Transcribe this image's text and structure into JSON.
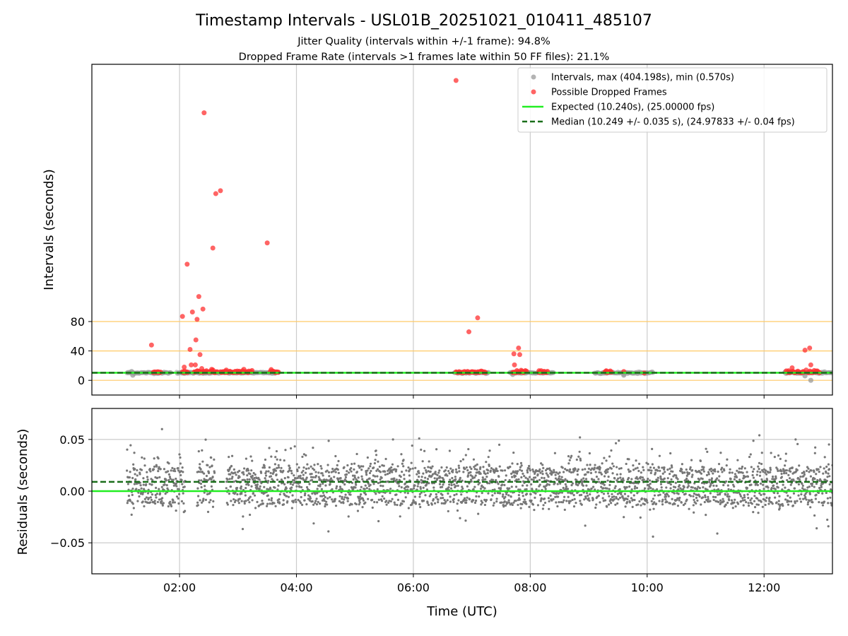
{
  "figure": {
    "title": "Timestamp Intervals - USL01B_20251021_010411_485107",
    "subtitle_1": "Jitter Quality (intervals within +/-1 frame): 94.8%",
    "subtitle_2": "Dropped Frame Rate (intervals >1 frames late within 50 FF files): 21.1%",
    "xlabel": "Time (UTC)"
  },
  "colors": {
    "intervals": "#999999",
    "dropped": "#ff3030",
    "expected": "#22ee22",
    "median": "#1a6e1a",
    "guide_lines": "#ffc966",
    "residual_points": "#777777",
    "grid": "#cccccc"
  },
  "chart_data": [
    {
      "type": "scatter",
      "panel": "intervals",
      "ylabel": "Intervals (seconds)",
      "xlim_hours": [
        0.5,
        13.17
      ],
      "ylim": [
        -20,
        430
      ],
      "yticks": [
        0,
        40,
        80
      ],
      "ytick_labels": [
        "0",
        "40",
        "80"
      ],
      "guide_lines_y": [
        0,
        40,
        80
      ],
      "x_vertical_grid_hours": [
        2,
        4,
        6,
        8,
        10,
        12
      ],
      "legend": {
        "position": "top-right",
        "entries": [
          "Intervals, max (404.198s), min (0.570s)",
          "Possible Dropped Frames",
          "Expected (10.240s), (25.00000 fps)",
          "Median (10.249 +/- 0.035 s), (24.97833 +/- 0.04 fps)"
        ]
      },
      "expected_interval": 10.24,
      "median_interval": 10.249,
      "interval_segments_hours": [
        [
          1.1,
          1.85
        ],
        [
          1.95,
          3.7
        ],
        [
          6.7,
          7.3
        ],
        [
          7.65,
          8.4
        ],
        [
          9.1,
          10.1
        ],
        [
          12.35,
          13.17
        ]
      ],
      "interval_outliers": [
        {
          "x": 1.18,
          "y": 12
        },
        {
          "x": 1.2,
          "y": 7
        },
        {
          "x": 7.7,
          "y": 8
        },
        {
          "x": 9.6,
          "y": 7
        },
        {
          "x": 12.7,
          "y": 6
        },
        {
          "x": 12.8,
          "y": 0
        }
      ],
      "dropped_frames_isolated": [
        {
          "x": 1.52,
          "y": 48
        },
        {
          "x": 2.05,
          "y": 87
        },
        {
          "x": 2.08,
          "y": 18
        },
        {
          "x": 2.13,
          "y": 158
        },
        {
          "x": 2.18,
          "y": 42
        },
        {
          "x": 2.2,
          "y": 21
        },
        {
          "x": 2.22,
          "y": 93
        },
        {
          "x": 2.27,
          "y": 21
        },
        {
          "x": 2.28,
          "y": 55
        },
        {
          "x": 2.3,
          "y": 83
        },
        {
          "x": 2.33,
          "y": 114
        },
        {
          "x": 2.35,
          "y": 35
        },
        {
          "x": 2.38,
          "y": 16
        },
        {
          "x": 2.4,
          "y": 97
        },
        {
          "x": 2.42,
          "y": 364
        },
        {
          "x": 2.46,
          "y": 13
        },
        {
          "x": 2.55,
          "y": 15
        },
        {
          "x": 2.57,
          "y": 180
        },
        {
          "x": 2.62,
          "y": 254
        },
        {
          "x": 2.7,
          "y": 258
        },
        {
          "x": 2.8,
          "y": 14
        },
        {
          "x": 3.1,
          "y": 15
        },
        {
          "x": 3.5,
          "y": 187
        },
        {
          "x": 6.73,
          "y": 408
        },
        {
          "x": 6.95,
          "y": 66
        },
        {
          "x": 7.1,
          "y": 85
        },
        {
          "x": 7.72,
          "y": 36
        },
        {
          "x": 7.73,
          "y": 21
        },
        {
          "x": 7.8,
          "y": 44
        },
        {
          "x": 7.82,
          "y": 35
        },
        {
          "x": 8.15,
          "y": 13
        },
        {
          "x": 9.3,
          "y": 13
        },
        {
          "x": 9.6,
          "y": 12
        },
        {
          "x": 9.95,
          "y": 10
        },
        {
          "x": 12.42,
          "y": 13
        },
        {
          "x": 12.48,
          "y": 17
        },
        {
          "x": 12.7,
          "y": 41
        },
        {
          "x": 12.78,
          "y": 44
        },
        {
          "x": 12.8,
          "y": 21
        },
        {
          "x": 12.72,
          "y": 14
        }
      ],
      "dropped_frames_clusters_hours": [
        [
          1.55,
          1.68
        ],
        [
          2.05,
          2.15
        ],
        [
          2.25,
          2.48
        ],
        [
          2.5,
          2.65
        ],
        [
          2.7,
          3.25
        ],
        [
          3.55,
          3.7
        ],
        [
          6.73,
          7.0
        ],
        [
          7.0,
          7.25
        ],
        [
          7.7,
          7.95
        ],
        [
          8.15,
          8.3
        ],
        [
          9.28,
          9.4
        ],
        [
          12.38,
          12.7
        ],
        [
          12.75,
          12.95
        ]
      ]
    },
    {
      "type": "scatter",
      "panel": "residuals",
      "ylabel": "Residuals (seconds)",
      "xlim_hours": [
        0.5,
        13.17
      ],
      "ylim": [
        -0.08,
        0.08
      ],
      "yticks": [
        -0.05,
        0.0,
        0.05
      ],
      "ytick_labels": [
        "−0.05",
        "0.00",
        "0.05"
      ],
      "expected_residual": 0.0,
      "median_residual": 0.009,
      "residual_levels": [
        -0.01,
        0.0,
        0.01,
        0.02
      ],
      "residual_spread_sd": 0.016,
      "residual_segments_hours": [
        [
          1.1,
          2.1
        ],
        [
          2.3,
          2.6
        ],
        [
          2.8,
          13.17
        ]
      ],
      "residual_extremes": [
        {
          "x": 1.7,
          "y": 0.06
        },
        {
          "x": 10.1,
          "y": -0.044
        },
        {
          "x": 11.2,
          "y": -0.041
        },
        {
          "x": 8.85,
          "y": 0.052
        },
        {
          "x": 11.92,
          "y": 0.054
        },
        {
          "x": 12.9,
          "y": -0.036
        },
        {
          "x": 13.1,
          "y": -0.034
        },
        {
          "x": 6.1,
          "y": 0.051
        }
      ],
      "xticks_hours": [
        2,
        4,
        6,
        8,
        10,
        12
      ],
      "xtick_labels": [
        "02:00",
        "04:00",
        "06:00",
        "08:00",
        "10:00",
        "12:00"
      ]
    }
  ]
}
